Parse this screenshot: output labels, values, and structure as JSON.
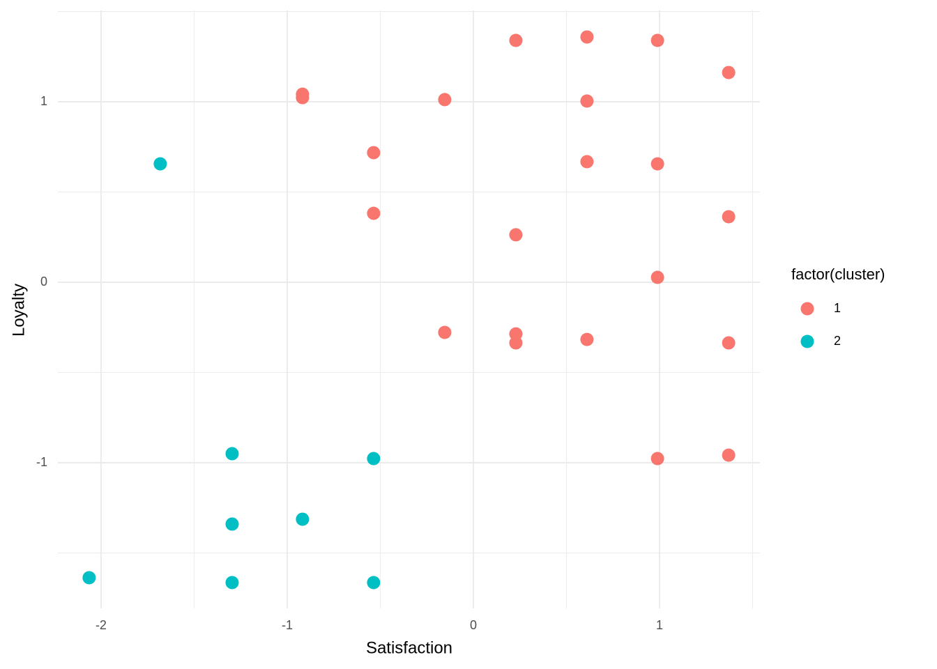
{
  "chart_data": {
    "type": "scatter",
    "x_label": "Satisfaction",
    "y_label": "Loyalty",
    "legend_title": "factor(cluster)",
    "legend_position": "right",
    "xlim": [
      -2.232,
      1.539
    ],
    "ylim": [
      -1.807,
      1.506
    ],
    "xticks": [
      -2,
      -1,
      0,
      1
    ],
    "yticks": [
      -1,
      0,
      1
    ],
    "x_minor_grid": [
      -1.5,
      -0.5,
      0.5,
      1.5
    ],
    "y_minor_grid": [
      -1.5,
      -0.5,
      0.5,
      1.5
    ],
    "grid": true,
    "series": [
      {
        "name": "1",
        "color": "#F8766D",
        "x": [
          0.228,
          0.61,
          0.989,
          1.371,
          -0.918,
          -0.918,
          -0.154,
          0.61,
          -0.536,
          0.61,
          0.989,
          -0.536,
          1.371,
          0.228,
          0.989,
          -0.154,
          0.228,
          0.228,
          0.61,
          1.371,
          0.989,
          1.371
        ],
        "y": [
          1.34,
          1.359,
          1.34,
          1.162,
          1.042,
          1.023,
          1.012,
          1.004,
          0.718,
          0.668,
          0.656,
          0.382,
          0.363,
          0.263,
          0.027,
          -0.278,
          -0.286,
          -0.336,
          -0.317,
          -0.336,
          -0.977,
          -0.958
        ]
      },
      {
        "name": "2",
        "color": "#00BFC4",
        "x": [
          -1.682,
          -1.296,
          -0.536,
          -1.296,
          -0.918,
          -2.064,
          -1.296,
          -0.536
        ],
        "y": [
          0.656,
          -0.95,
          -0.977,
          -1.34,
          -1.313,
          -1.637,
          -1.664,
          -1.664
        ]
      }
    ]
  }
}
